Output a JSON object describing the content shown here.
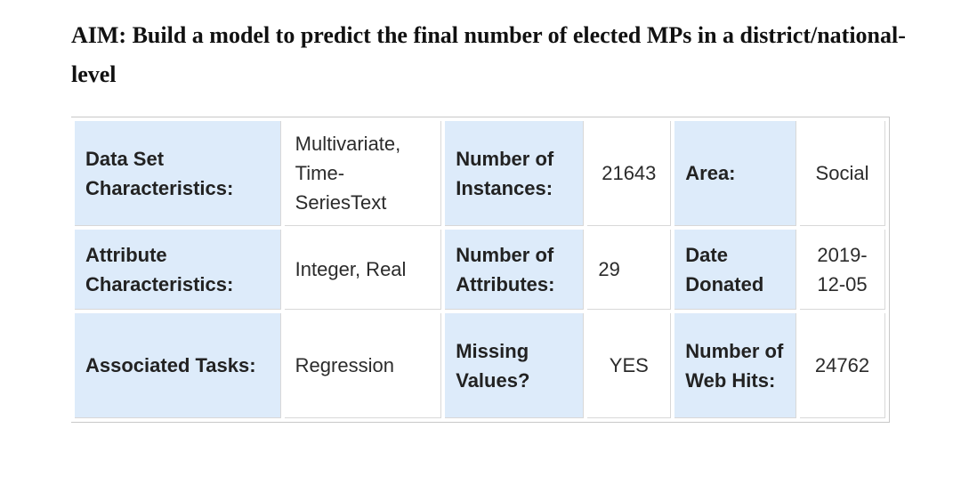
{
  "heading": {
    "text": "AIM: Build a model to predict the final number of elected MPs in a district/national- level"
  },
  "table": {
    "rows": [
      {
        "label1": "Data Set Characteristics:",
        "value1": "Multivariate, Time-SeriesText",
        "label2": "Number of Instances:",
        "value2": "21643",
        "label3": "Area:",
        "value3": "Social"
      },
      {
        "label1": "Attribute Characteristics:",
        "value1": "Integer, Real",
        "label2": "Number of Attributes:",
        "value2": "29",
        "label3": "Date Donated",
        "value3": "2019-12-05"
      },
      {
        "label1": "Associated Tasks:",
        "value1": "Regression",
        "label2": "Missing Values?",
        "value2": "YES",
        "label3": "Number of Web Hits:",
        "value3": "24762"
      }
    ]
  },
  "colors": {
    "label_background": "#ddebfa",
    "border": "#c8c8c8"
  }
}
